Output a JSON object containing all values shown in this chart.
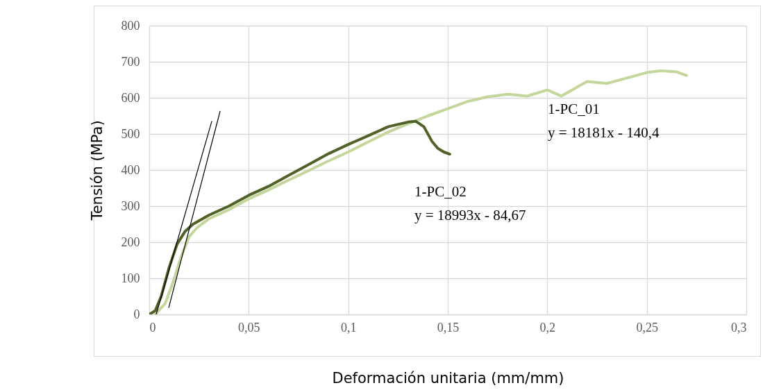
{
  "chart_data": {
    "type": "line",
    "xlabel": "Deformación unitaria (mm/mm)",
    "ylabel": "Tensión (MPa)",
    "xlim": [
      0,
      0.3
    ],
    "xticks": [
      {
        "value": 0,
        "label": "0"
      },
      {
        "value": 0.05,
        "label": "0,05"
      },
      {
        "value": 0.1,
        "label": "0,1"
      },
      {
        "value": 0.15,
        "label": "0,15"
      },
      {
        "value": 0.2,
        "label": "0,2"
      },
      {
        "value": 0.25,
        "label": "0,25"
      },
      {
        "value": 0.3,
        "label": "0,3"
      }
    ],
    "ylim": [
      0,
      800
    ],
    "yticks": [
      0,
      100,
      200,
      300,
      400,
      500,
      600,
      700,
      800
    ],
    "grid": true,
    "line_style": "solid",
    "series": [
      {
        "color": "#c3d69b",
        "x": [
          0.003,
          0.008,
          0.012,
          0.016,
          0.02,
          0.024,
          0.03,
          0.04,
          0.05,
          0.06,
          0.07,
          0.08,
          0.09,
          0.1,
          0.11,
          0.12,
          0.13,
          0.14,
          0.15,
          0.16,
          0.17,
          0.18,
          0.19,
          0.2,
          0.207,
          0.215,
          0.22,
          0.23,
          0.24,
          0.25,
          0.257,
          0.265,
          0.27
        ],
        "values": [
          0,
          30,
          90,
          160,
          215,
          240,
          265,
          290,
          320,
          345,
          372,
          398,
          425,
          450,
          478,
          505,
          528,
          550,
          570,
          590,
          603,
          610,
          605,
          622,
          605,
          630,
          645,
          640,
          655,
          670,
          675,
          672,
          662
        ]
      },
      {
        "color": "#4f6228",
        "x": [
          0,
          0.003,
          0.006,
          0.01,
          0.014,
          0.018,
          0.022,
          0.03,
          0.04,
          0.05,
          0.06,
          0.07,
          0.08,
          0.09,
          0.1,
          0.11,
          0.12,
          0.13,
          0.134,
          0.138,
          0.142,
          0.145,
          0.148,
          0.151
        ],
        "values": [
          0,
          10,
          50,
          130,
          195,
          230,
          250,
          275,
          300,
          330,
          355,
          385,
          415,
          445,
          471,
          495,
          520,
          533,
          535,
          520,
          480,
          460,
          450,
          444
        ]
      },
      {
        "type": "line",
        "color": "#000000",
        "x": [
          0.0035,
          0.0314
        ],
        "values": [
          0,
          535
        ]
      },
      {
        "type": "line",
        "color": "#000000",
        "x": [
          0.0098,
          0.0356
        ],
        "values": [
          19,
          563
        ]
      }
    ],
    "annotations": [
      "1-PC_02",
      "y = 18993x - 84,67",
      "1-PC_01",
      "y = 18181x - 140,4"
    ]
  }
}
